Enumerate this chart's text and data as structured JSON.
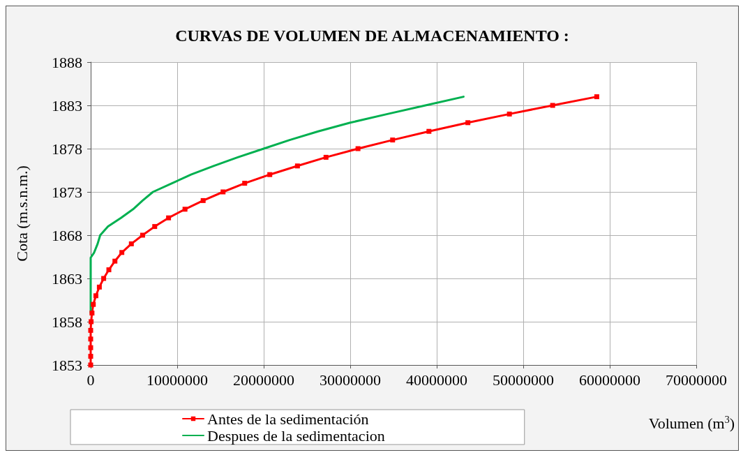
{
  "chart_data": {
    "type": "line",
    "title": "CURVAS DE VOLUMEN DE ALMACENAMIENTO :",
    "xlabel": "Volumen (m$^{3}$)",
    "ylabel": "Cota (m.s.n.m.)",
    "xlim": [
      0,
      70000000
    ],
    "xticks": [
      0,
      10000000,
      20000000,
      30000000,
      40000000,
      50000000,
      60000000,
      70000000
    ],
    "ylim": [
      1853,
      1888
    ],
    "yticks": [
      1853,
      1858,
      1863,
      1868,
      1873,
      1878,
      1883,
      1888
    ],
    "grid": true,
    "legend": "bottom",
    "line_style": "solid",
    "series": [
      {
        "name": "Antes de la sedimentación",
        "color": "#ff0000",
        "marker": "square",
        "x": [
          0,
          0,
          0,
          0,
          0,
          50000,
          150000,
          300000,
          600000,
          1000000,
          1500000,
          2100000,
          2800000,
          3600000,
          4700000,
          6000000,
          7400000,
          9000000,
          10900000,
          13000000,
          15300000,
          17800000,
          20700000,
          23900000,
          27200000,
          30900000,
          34900000,
          39100000,
          43600000,
          48400000,
          53400000,
          58500000
        ],
        "values": [
          1853,
          1854,
          1855,
          1856,
          1857,
          1858,
          1859,
          1860,
          1861,
          1862,
          1863,
          1864,
          1865,
          1866,
          1867,
          1868,
          1869,
          1870,
          1871,
          1872,
          1873,
          1874,
          1875,
          1876,
          1877,
          1878,
          1879,
          1880,
          1881,
          1882,
          1883,
          1884
        ]
      },
      {
        "name": "Despues de la sedimentacion",
        "color": "#00b050",
        "marker": "none",
        "x": [
          0,
          0,
          400000,
          800000,
          1100000,
          2000000,
          3500000,
          4900000,
          6000000,
          7200000,
          9400000,
          11600000,
          14200000,
          17000000,
          20000000,
          23000000,
          26300000,
          30000000,
          34300000,
          38700000,
          43100000
        ],
        "values": [
          1859,
          1865.4,
          1866,
          1867,
          1868,
          1869,
          1870,
          1871,
          1872,
          1873,
          1874,
          1875,
          1876,
          1877,
          1878,
          1879,
          1880,
          1881,
          1882,
          1883,
          1884
        ]
      }
    ]
  }
}
